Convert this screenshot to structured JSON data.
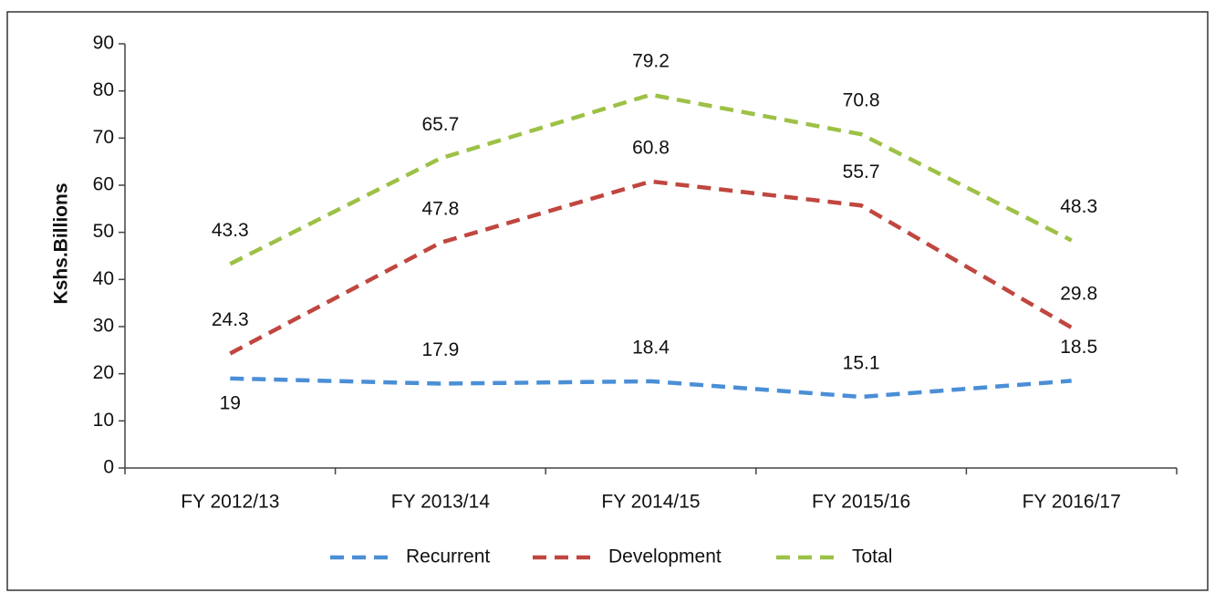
{
  "chart_data": {
    "type": "line",
    "y_label": "Kshs.Billions",
    "categories": [
      "FY 2012/13",
      "FY 2013/14",
      "FY 2014/15",
      "FY 2015/16",
      "FY 2016/17"
    ],
    "series": [
      {
        "name": "Recurrent",
        "color": "#4a8fd6",
        "values": [
          19,
          17.9,
          18.4,
          15.1,
          18.5
        ]
      },
      {
        "name": "Development",
        "color": "#c0463f",
        "values": [
          24.3,
          47.8,
          60.8,
          55.7,
          29.8
        ]
      },
      {
        "name": "Total",
        "color": "#9dc146",
        "values": [
          43.3,
          65.7,
          79.2,
          70.8,
          48.3
        ]
      }
    ],
    "ylim": [
      0,
      90
    ],
    "yticks": [
      0,
      10,
      20,
      30,
      40,
      50,
      60,
      70,
      80,
      90
    ],
    "data_labels": true,
    "legend": "bottom"
  }
}
